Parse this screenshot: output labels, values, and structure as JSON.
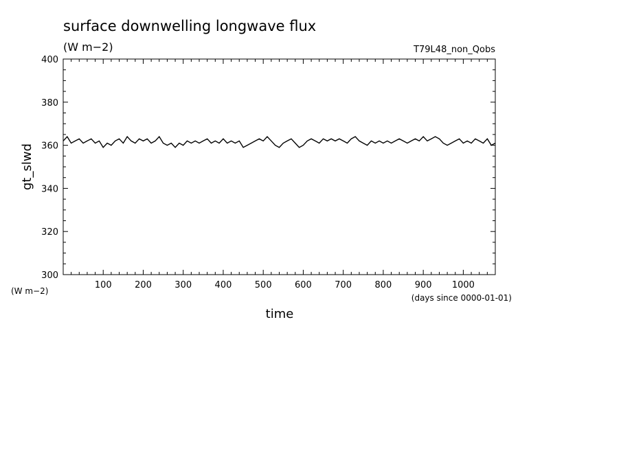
{
  "chart_data": {
    "type": "line",
    "title": "surface downwelling longwave flux",
    "units_label": "(W m−2)",
    "experiment": "T79L48_non_Qobs",
    "ylabel": "gt_slwd",
    "xlabel": "time",
    "x_units": "(days since 0000-01-01)",
    "y_units": "(W m−2)",
    "xlim": [
      0,
      1080
    ],
    "ylim": [
      300,
      400
    ],
    "xticks": [
      100,
      200,
      300,
      400,
      500,
      600,
      700,
      800,
      900,
      1000
    ],
    "yticks": [
      300,
      320,
      340,
      360,
      380,
      400
    ],
    "grid": false,
    "line_color": "#000000",
    "series": [
      {
        "x": [
          0,
          10,
          20,
          30,
          40,
          50,
          60,
          70,
          80,
          90,
          100,
          110,
          120,
          130,
          140,
          150,
          160,
          170,
          180,
          190,
          200,
          210,
          220,
          230,
          240,
          250,
          260,
          270,
          280,
          290,
          300,
          310,
          320,
          330,
          340,
          350,
          360,
          370,
          380,
          390,
          400,
          410,
          420,
          430,
          440,
          450,
          460,
          470,
          480,
          490,
          500,
          510,
          520,
          530,
          540,
          550,
          560,
          570,
          580,
          590,
          600,
          610,
          620,
          630,
          640,
          650,
          660,
          670,
          680,
          690,
          700,
          710,
          720,
          730,
          740,
          750,
          760,
          770,
          780,
          790,
          800,
          810,
          820,
          830,
          840,
          850,
          860,
          870,
          880,
          890,
          900,
          910,
          920,
          930,
          940,
          950,
          960,
          970,
          980,
          990,
          1000,
          1010,
          1020,
          1030,
          1040,
          1050,
          1060,
          1070,
          1080
        ],
        "y": [
          362,
          364,
          361,
          362,
          363,
          361,
          362,
          363,
          361,
          362,
          359,
          361,
          360,
          362,
          363,
          361,
          364,
          362,
          361,
          363,
          362,
          363,
          361,
          362,
          364,
          361,
          360,
          361,
          359,
          361,
          360,
          362,
          361,
          362,
          361,
          362,
          363,
          361,
          362,
          361,
          363,
          361,
          362,
          361,
          362,
          359,
          360,
          361,
          362,
          363,
          362,
          364,
          362,
          360,
          359,
          361,
          362,
          363,
          361,
          359,
          360,
          362,
          363,
          362,
          361,
          363,
          362,
          363,
          362,
          363,
          362,
          361,
          363,
          364,
          362,
          361,
          360,
          362,
          361,
          362,
          361,
          362,
          361,
          362,
          363,
          362,
          361,
          362,
          363,
          362,
          364,
          362,
          363,
          364,
          363,
          361,
          360,
          361,
          362,
          363,
          361,
          362,
          361,
          363,
          362,
          361,
          363,
          360,
          361
        ]
      }
    ]
  }
}
